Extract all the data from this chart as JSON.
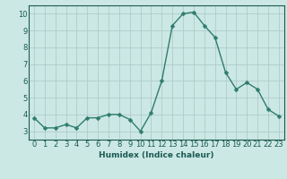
{
  "x": [
    0,
    1,
    2,
    3,
    4,
    5,
    6,
    7,
    8,
    9,
    10,
    11,
    12,
    13,
    14,
    15,
    16,
    17,
    18,
    19,
    20,
    21,
    22,
    23
  ],
  "y": [
    3.8,
    3.2,
    3.2,
    3.4,
    3.2,
    3.8,
    3.8,
    4.0,
    4.0,
    3.7,
    3.0,
    4.1,
    6.0,
    9.3,
    10.0,
    10.1,
    9.3,
    8.6,
    6.5,
    5.5,
    5.9,
    5.5,
    4.3,
    3.9
  ],
  "line_color": "#2e7d6e",
  "marker_color": "#2e7d6e",
  "bg_color": "#cce8e4",
  "grid_color": "#b0ccca",
  "axis_label_color": "#1a5a52",
  "tick_color": "#1a5a52",
  "xlabel": "Humidex (Indice chaleur)",
  "ylim": [
    2.5,
    10.5
  ],
  "xlim": [
    -0.5,
    23.5
  ],
  "yticks": [
    3,
    4,
    5,
    6,
    7,
    8,
    9,
    10
  ],
  "xticks": [
    0,
    1,
    2,
    3,
    4,
    5,
    6,
    7,
    8,
    9,
    10,
    11,
    12,
    13,
    14,
    15,
    16,
    17,
    18,
    19,
    20,
    21,
    22,
    23
  ],
  "xlabel_fontsize": 6.5,
  "tick_fontsize": 6.0,
  "marker_size": 2.5,
  "line_width": 1.0
}
